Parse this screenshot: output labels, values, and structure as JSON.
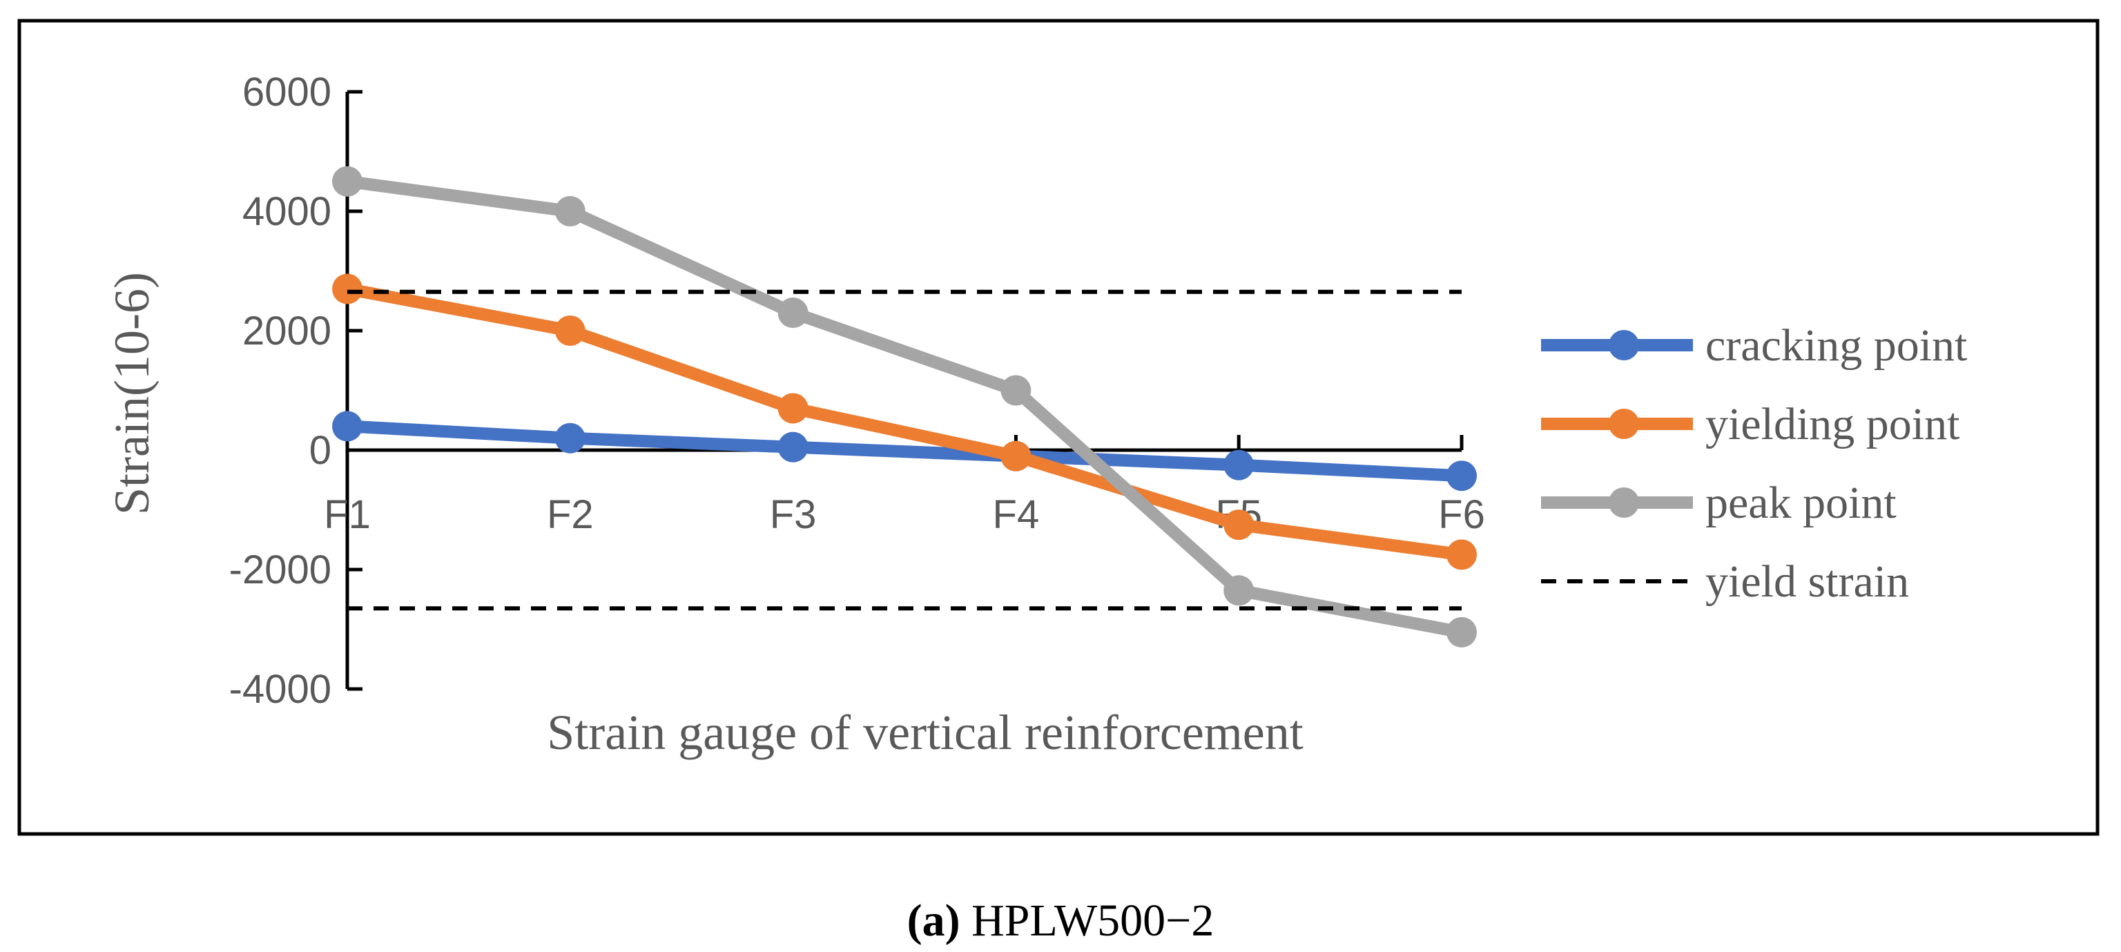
{
  "chart_data": {
    "type": "line",
    "title": "",
    "xlabel": "Strain gauge of vertical reinforcement",
    "ylabel": "Strain(10-6)",
    "categories": [
      "F1",
      "F2",
      "F3",
      "F4",
      "F5",
      "F6"
    ],
    "ylim": [
      -4000,
      6000
    ],
    "yticks": [
      6000,
      4000,
      2000,
      0,
      -2000,
      -4000
    ],
    "ytick_labels": [
      "6000",
      "4000",
      "2000",
      "0",
      "-2000",
      "-4000"
    ],
    "grid": false,
    "legend_position": "right",
    "series": [
      {
        "name": "cracking point",
        "color": "#4472C4",
        "style": "solid",
        "marker": "circle",
        "values": [
          400,
          200,
          50,
          -100,
          -250,
          -430
        ]
      },
      {
        "name": "yielding point",
        "color": "#ED7D31",
        "style": "solid",
        "marker": "circle",
        "values": [
          2700,
          2000,
          700,
          -100,
          -1250,
          -1750
        ]
      },
      {
        "name": "peak point",
        "color": "#A5A5A5",
        "style": "solid",
        "marker": "circle",
        "values": [
          4500,
          4000,
          2300,
          1000,
          -2350,
          -3050
        ]
      },
      {
        "name": "yield strain",
        "color": "#000000",
        "style": "dashed",
        "marker": "none",
        "values": [
          2650,
          2650,
          2650,
          2650,
          2650,
          2650
        ],
        "mirror_values": [
          -2650,
          -2650,
          -2650,
          -2650,
          -2650,
          -2650
        ]
      }
    ]
  },
  "caption": {
    "label": "(a)",
    "text": " HPLW500−2"
  }
}
